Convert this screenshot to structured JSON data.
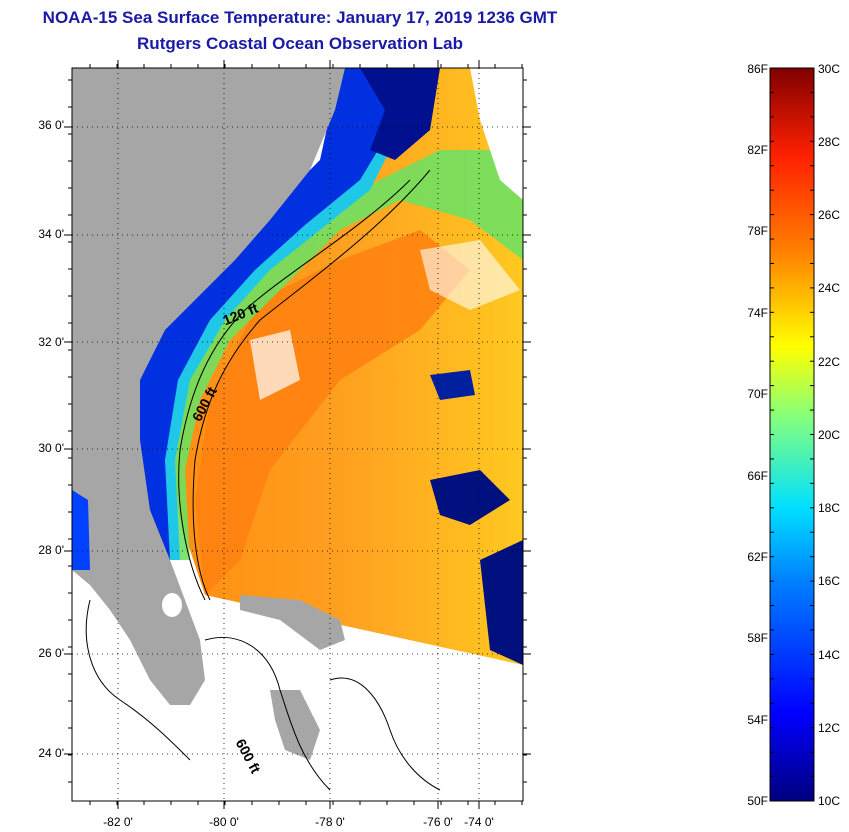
{
  "header": {
    "title": "NOAA-15 Sea Surface Temperature:  January 17, 2019 1236 GMT",
    "subtitle": "Rutgers Coastal Ocean Observation Lab"
  },
  "map": {
    "latitude_labels": [
      "36 0'",
      "34 0'",
      "32 0'",
      "30 0'",
      "28 0'",
      "26 0'",
      "24 0'"
    ],
    "longitude_labels": [
      "-82 0'",
      "-80 0'",
      "-78 0'",
      "-76 0'",
      "-74 0'"
    ],
    "contour_labels": [
      "120 ft",
      "600 ft",
      "600 ft"
    ]
  },
  "colorbar": {
    "fahrenheit_labels": [
      "86F",
      "82F",
      "78F",
      "74F",
      "70F",
      "66F",
      "62F",
      "58F",
      "54F",
      "50F"
    ],
    "celsius_labels": [
      "30C",
      "28C",
      "26C",
      "24C",
      "22C",
      "20C",
      "18C",
      "16C",
      "14C",
      "12C",
      "10C"
    ],
    "colors": {
      "land": "#a6a6a6",
      "water_cold": "#00007f",
      "water_warm": "#ff7f00",
      "title": "#1a1aa6"
    }
  }
}
